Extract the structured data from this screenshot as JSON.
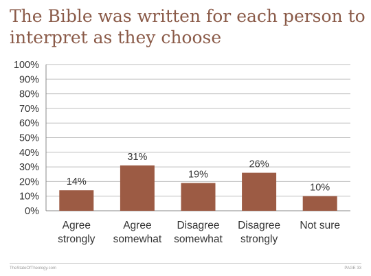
{
  "page": {
    "title_line1": "The Bible was written for each person to",
    "title_line2": "interpret as they choose",
    "footer_left": "TheStateOfTheology.com",
    "footer_right": "PAGE 33"
  },
  "colors": {
    "bar": "#9c5b44",
    "title": "#8a5a48",
    "grid": "#bdbdbd"
  },
  "chart_data": {
    "type": "bar",
    "title": "The Bible was written for each person to interpret as they choose",
    "categories": [
      [
        "Agree",
        "strongly"
      ],
      [
        "Agree",
        "somewhat"
      ],
      [
        "Disagree",
        "somewhat"
      ],
      [
        "Disagree",
        "strongly"
      ],
      [
        "Not sure"
      ]
    ],
    "values": [
      14,
      31,
      19,
      26,
      10
    ],
    "value_labels": [
      "14%",
      "31%",
      "19%",
      "26%",
      "10%"
    ],
    "ylim": [
      0,
      100
    ],
    "yticks": [
      "0%",
      "10%",
      "20%",
      "30%",
      "40%",
      "50%",
      "60%",
      "70%",
      "80%",
      "90%",
      "100%"
    ],
    "grid": true,
    "legend": "none"
  }
}
